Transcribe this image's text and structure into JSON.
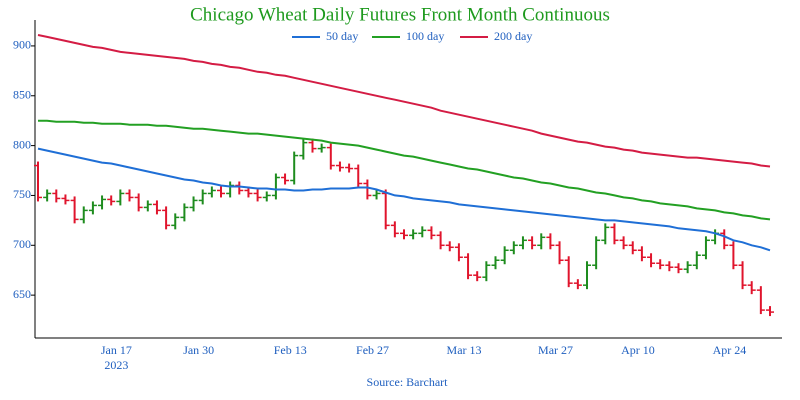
{
  "chart_data": {
    "type": "ohlc",
    "title": "Chicago Wheat Daily Futures Front Month Continuous",
    "source": "Source: Barchart",
    "categories": [
      null,
      null,
      null,
      null,
      null,
      null,
      null,
      null,
      null,
      "Jan 17",
      null,
      null,
      null,
      null,
      null,
      null,
      null,
      null,
      "Jan 30",
      null,
      null,
      null,
      null,
      null,
      null,
      null,
      null,
      null,
      "Feb 13",
      null,
      null,
      null,
      null,
      null,
      null,
      null,
      null,
      "Feb 27",
      null,
      null,
      null,
      null,
      null,
      null,
      null,
      null,
      null,
      "Mar 13",
      null,
      null,
      null,
      null,
      null,
      null,
      null,
      null,
      null,
      "Mar 27",
      null,
      null,
      null,
      null,
      null,
      null,
      null,
      null,
      "Apr 10",
      null,
      null,
      null,
      null,
      null,
      null,
      null,
      null,
      null,
      "Apr 24",
      null,
      null,
      null,
      null
    ],
    "x_year_label": "2023",
    "ohlc": {
      "up_color": "#1e8c1e",
      "down_color": "#e0142c",
      "open": [
        780,
        748,
        752,
        747,
        745,
        726,
        735,
        740,
        746,
        744,
        752,
        748,
        738,
        741,
        735,
        720,
        728,
        738,
        745,
        752,
        755,
        752,
        760,
        755,
        752,
        748,
        750,
        768,
        765,
        790,
        803,
        797,
        798,
        780,
        778,
        777,
        762,
        750,
        752,
        720,
        712,
        710,
        712,
        715,
        710,
        700,
        698,
        688,
        670,
        668,
        680,
        685,
        695,
        700,
        705,
        700,
        708,
        700,
        685,
        662,
        660,
        680,
        705,
        718,
        705,
        700,
        695,
        688,
        682,
        680,
        678,
        676,
        680,
        690,
        705,
        712,
        700,
        680,
        660,
        655,
        635
      ],
      "high": [
        784,
        756,
        756,
        751,
        749,
        739,
        744,
        750,
        750,
        756,
        756,
        752,
        745,
        745,
        739,
        732,
        742,
        749,
        756,
        759,
        759,
        764,
        764,
        759,
        756,
        754,
        772,
        772,
        794,
        807,
        807,
        802,
        802,
        784,
        782,
        781,
        766,
        756,
        756,
        724,
        716,
        716,
        719,
        719,
        714,
        704,
        702,
        692,
        674,
        684,
        689,
        699,
        704,
        709,
        709,
        712,
        712,
        704,
        689,
        666,
        684,
        709,
        722,
        722,
        709,
        704,
        699,
        692,
        686,
        684,
        682,
        684,
        694,
        709,
        716,
        716,
        704,
        684,
        664,
        659,
        639
      ],
      "low": [
        744,
        744,
        743,
        741,
        722,
        722,
        731,
        736,
        740,
        740,
        744,
        734,
        734,
        731,
        716,
        716,
        724,
        734,
        741,
        748,
        748,
        748,
        751,
        748,
        744,
        744,
        746,
        761,
        761,
        786,
        793,
        793,
        776,
        774,
        773,
        758,
        746,
        746,
        716,
        708,
        706,
        706,
        708,
        706,
        696,
        694,
        684,
        666,
        664,
        664,
        676,
        681,
        691,
        696,
        696,
        696,
        696,
        681,
        658,
        656,
        656,
        676,
        701,
        701,
        696,
        691,
        684,
        678,
        676,
        674,
        672,
        672,
        676,
        686,
        701,
        696,
        676,
        656,
        651,
        631,
        629
      ],
      "close": [
        748,
        752,
        747,
        745,
        726,
        735,
        740,
        746,
        744,
        752,
        748,
        738,
        741,
        735,
        720,
        728,
        738,
        745,
        752,
        755,
        752,
        760,
        755,
        752,
        748,
        750,
        768,
        765,
        790,
        803,
        797,
        798,
        780,
        778,
        777,
        762,
        750,
        752,
        720,
        712,
        710,
        712,
        715,
        710,
        700,
        698,
        688,
        670,
        668,
        680,
        685,
        695,
        700,
        705,
        700,
        708,
        700,
        685,
        662,
        660,
        680,
        705,
        718,
        705,
        700,
        695,
        688,
        682,
        680,
        678,
        676,
        680,
        690,
        705,
        712,
        700,
        680,
        660,
        655,
        635,
        633
      ]
    },
    "series": [
      {
        "name": "50 day",
        "color": "#1f6fd6",
        "values": [
          797,
          795,
          793,
          791,
          789,
          787,
          785,
          783,
          782,
          780,
          778,
          776,
          774,
          772,
          770,
          768,
          766,
          765,
          763,
          762,
          760,
          759,
          759,
          758,
          757,
          757,
          756,
          756,
          755,
          755,
          756,
          756,
          757,
          757,
          757,
          758,
          758,
          756,
          753,
          750,
          749,
          747,
          746,
          745,
          744,
          743,
          741,
          740,
          739,
          738,
          737,
          736,
          735,
          734,
          733,
          732,
          731,
          730,
          729,
          728,
          727,
          726,
          725,
          725,
          724,
          723,
          722,
          721,
          720,
          719,
          717,
          716,
          715,
          714,
          712,
          709,
          705,
          703,
          700,
          698,
          695
        ]
      },
      {
        "name": "100 day",
        "color": "#23a023",
        "values": [
          825,
          825,
          824,
          824,
          824,
          823,
          823,
          822,
          822,
          822,
          821,
          821,
          821,
          820,
          820,
          819,
          818,
          817,
          817,
          816,
          815,
          814,
          813,
          812,
          812,
          811,
          810,
          809,
          808,
          807,
          806,
          805,
          803,
          802,
          801,
          800,
          798,
          796,
          794,
          792,
          790,
          789,
          787,
          785,
          783,
          781,
          779,
          777,
          776,
          774,
          772,
          770,
          768,
          767,
          765,
          763,
          762,
          760,
          758,
          757,
          755,
          753,
          752,
          750,
          748,
          747,
          745,
          744,
          742,
          741,
          740,
          739,
          737,
          736,
          735,
          733,
          732,
          730,
          729,
          727,
          726
        ]
      },
      {
        "name": "200 day",
        "color": "#d41c44",
        "values": [
          911,
          909,
          907,
          905,
          903,
          901,
          899,
          898,
          896,
          894,
          893,
          892,
          891,
          890,
          889,
          888,
          887,
          885,
          884,
          882,
          881,
          879,
          878,
          876,
          874,
          873,
          871,
          870,
          868,
          866,
          864,
          862,
          860,
          858,
          856,
          854,
          852,
          850,
          848,
          846,
          844,
          842,
          840,
          838,
          835,
          833,
          831,
          829,
          827,
          825,
          823,
          821,
          819,
          817,
          815,
          812,
          810,
          808,
          806,
          804,
          803,
          801,
          799,
          798,
          796,
          795,
          793,
          792,
          791,
          790,
          789,
          788,
          788,
          787,
          786,
          785,
          784,
          783,
          782,
          780,
          779
        ]
      }
    ],
    "ylim": [
      607,
      926
    ],
    "yticks": [
      650,
      700,
      750,
      800,
      850,
      900
    ],
    "legend": "top",
    "grid": false
  }
}
